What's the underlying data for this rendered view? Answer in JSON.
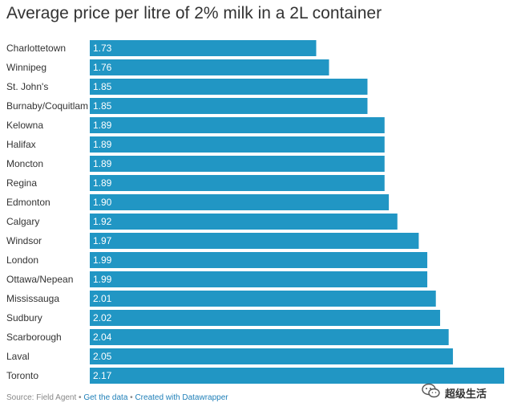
{
  "title": "Average price per litre of 2% milk in a 2L container",
  "footer": {
    "source": "Source: Field Agent",
    "sep1": " • ",
    "get_data": "Get the data",
    "sep2": " • ",
    "created_with": "Created with Datawrapper"
  },
  "watermark": {
    "text": "超级生活",
    "icon": "wechat-icon"
  },
  "colors": {
    "bar": "#2196c4",
    "bar_label": "#ffffff",
    "category_label": "#333333",
    "link": "#1e7fb8"
  },
  "chart_data": {
    "type": "bar",
    "orientation": "horizontal",
    "title": "Average price per litre of 2% milk in a 2L container",
    "categories": [
      "Charlottetown",
      "Winnipeg",
      "St. John's",
      "Burnaby/Coquitlam",
      "Kelowna",
      "Halifax",
      "Moncton",
      "Regina",
      "Edmonton",
      "Calgary",
      "Windsor",
      "London",
      "Ottawa/Nepean",
      "Mississauga",
      "Sudbury",
      "Scarborough",
      "Laval",
      "Toronto"
    ],
    "values": [
      1.73,
      1.76,
      1.85,
      1.85,
      1.89,
      1.89,
      1.89,
      1.89,
      1.9,
      1.92,
      1.97,
      1.99,
      1.99,
      2.01,
      2.02,
      2.04,
      2.05,
      2.17
    ],
    "value_labels": [
      "1.73",
      "1.76",
      "1.85",
      "1.85",
      "1.89",
      "1.89",
      "1.89",
      "1.89",
      "1.90",
      "1.92",
      "1.97",
      "1.99",
      "1.99",
      "2.01",
      "2.02",
      "2.04",
      "2.05",
      "2.17"
    ],
    "xlim": [
      1.2,
      2.17
    ],
    "grid": false,
    "legend": "none"
  }
}
